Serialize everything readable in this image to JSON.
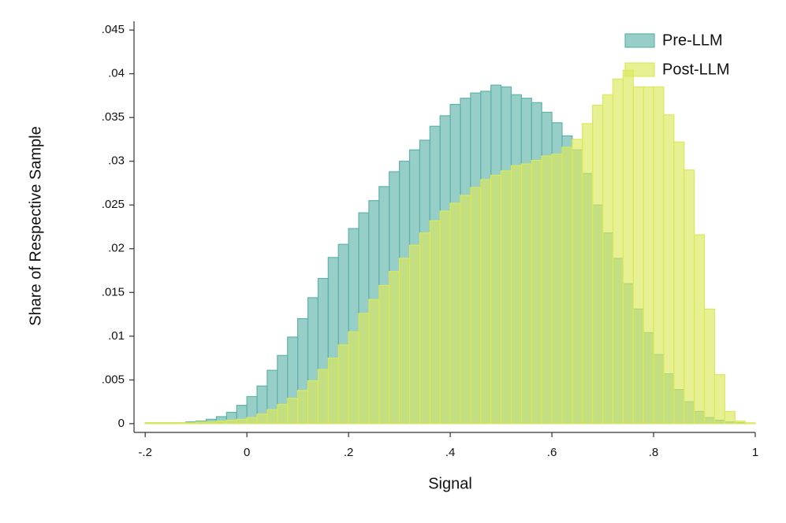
{
  "chart_data": {
    "type": "histogram",
    "x_label": "Signal",
    "y_label": "Share of Respective Sample",
    "bins": [
      -0.2,
      -0.18,
      -0.16,
      -0.14,
      -0.12,
      -0.1,
      -0.08,
      -0.06,
      -0.04,
      -0.02,
      0,
      0.02,
      0.04,
      0.06,
      0.08,
      0.1,
      0.12,
      0.14,
      0.16,
      0.18,
      0.2,
      0.22,
      0.24,
      0.26,
      0.28,
      0.3,
      0.32,
      0.34,
      0.36,
      0.38,
      0.4,
      0.42,
      0.44,
      0.46,
      0.48,
      0.5,
      0.52,
      0.54,
      0.56,
      0.58,
      0.6,
      0.62,
      0.64,
      0.66,
      0.68,
      0.7,
      0.72,
      0.74,
      0.76,
      0.78,
      0.8,
      0.82,
      0.84,
      0.86,
      0.88,
      0.9,
      0.92,
      0.94,
      0.96,
      0.98,
      1
    ],
    "series": [
      {
        "name": "Pre-LLM",
        "color": "#5fb3aa",
        "values": [
          0.0001,
          0.0001,
          0.0001,
          0.0001,
          0.0002,
          0.0003,
          0.0005,
          0.0008,
          0.0013,
          0.0021,
          0.0031,
          0.0043,
          0.0061,
          0.0078,
          0.0099,
          0.012,
          0.0144,
          0.0166,
          0.019,
          0.0205,
          0.0223,
          0.0241,
          0.0255,
          0.0271,
          0.0288,
          0.03,
          0.0313,
          0.0324,
          0.034,
          0.0352,
          0.0365,
          0.0372,
          0.0378,
          0.038,
          0.0387,
          0.0385,
          0.0376,
          0.0372,
          0.0367,
          0.0356,
          0.0344,
          0.0329,
          0.0313,
          0.0286,
          0.025,
          0.0218,
          0.0189,
          0.016,
          0.0131,
          0.0104,
          0.0079,
          0.0057,
          0.0039,
          0.0025,
          0.0014,
          0.0007,
          0.0004,
          0.0002,
          0.0001,
          0
        ]
      },
      {
        "name": "Post-LLM",
        "color": "#dbe85a",
        "values": [
          0.0001,
          0.0001,
          0.0001,
          0.0001,
          0.0001,
          0.0002,
          0.0002,
          0.0003,
          0.0004,
          0.0005,
          0.0007,
          0.0011,
          0.0016,
          0.0022,
          0.0029,
          0.0038,
          0.0049,
          0.0062,
          0.0075,
          0.009,
          0.0105,
          0.0126,
          0.0142,
          0.0158,
          0.0174,
          0.0189,
          0.0204,
          0.0218,
          0.0232,
          0.0243,
          0.0252,
          0.0261,
          0.027,
          0.0279,
          0.0284,
          0.0289,
          0.0295,
          0.0297,
          0.0301,
          0.0306,
          0.0308,
          0.0316,
          0.0325,
          0.0343,
          0.0364,
          0.0376,
          0.0394,
          0.0404,
          0.0385,
          0.0385,
          0.0385,
          0.0353,
          0.0322,
          0.029,
          0.0216,
          0.0131,
          0.0056,
          0.0014,
          0.0003,
          0.0001
        ]
      }
    ],
    "xlim": [
      -0.222,
      1.0
    ],
    "ylim": [
      -0.001,
      0.046
    ],
    "xticks": [
      {
        "value": -0.2,
        "label": "-.2"
      },
      0,
      {
        "value": 0.2,
        "label": ".2"
      },
      {
        "value": 0.4,
        "label": ".4"
      },
      {
        "value": 0.6,
        "label": ".6"
      },
      {
        "value": 0.8,
        "label": ".8"
      },
      1
    ],
    "yticks": [
      0,
      {
        "value": 0.005,
        "label": ".005"
      },
      {
        "value": 0.01,
        "label": ".01"
      },
      {
        "value": 0.015,
        "label": ".015"
      },
      {
        "value": 0.02,
        "label": ".02"
      },
      {
        "value": 0.025,
        "label": ".025"
      },
      {
        "value": 0.03,
        "label": ".03"
      },
      {
        "value": 0.035,
        "label": ".035"
      },
      {
        "value": 0.04,
        "label": ".04"
      },
      {
        "value": 0.045,
        "label": ".045"
      }
    ],
    "legend": "top-right"
  }
}
